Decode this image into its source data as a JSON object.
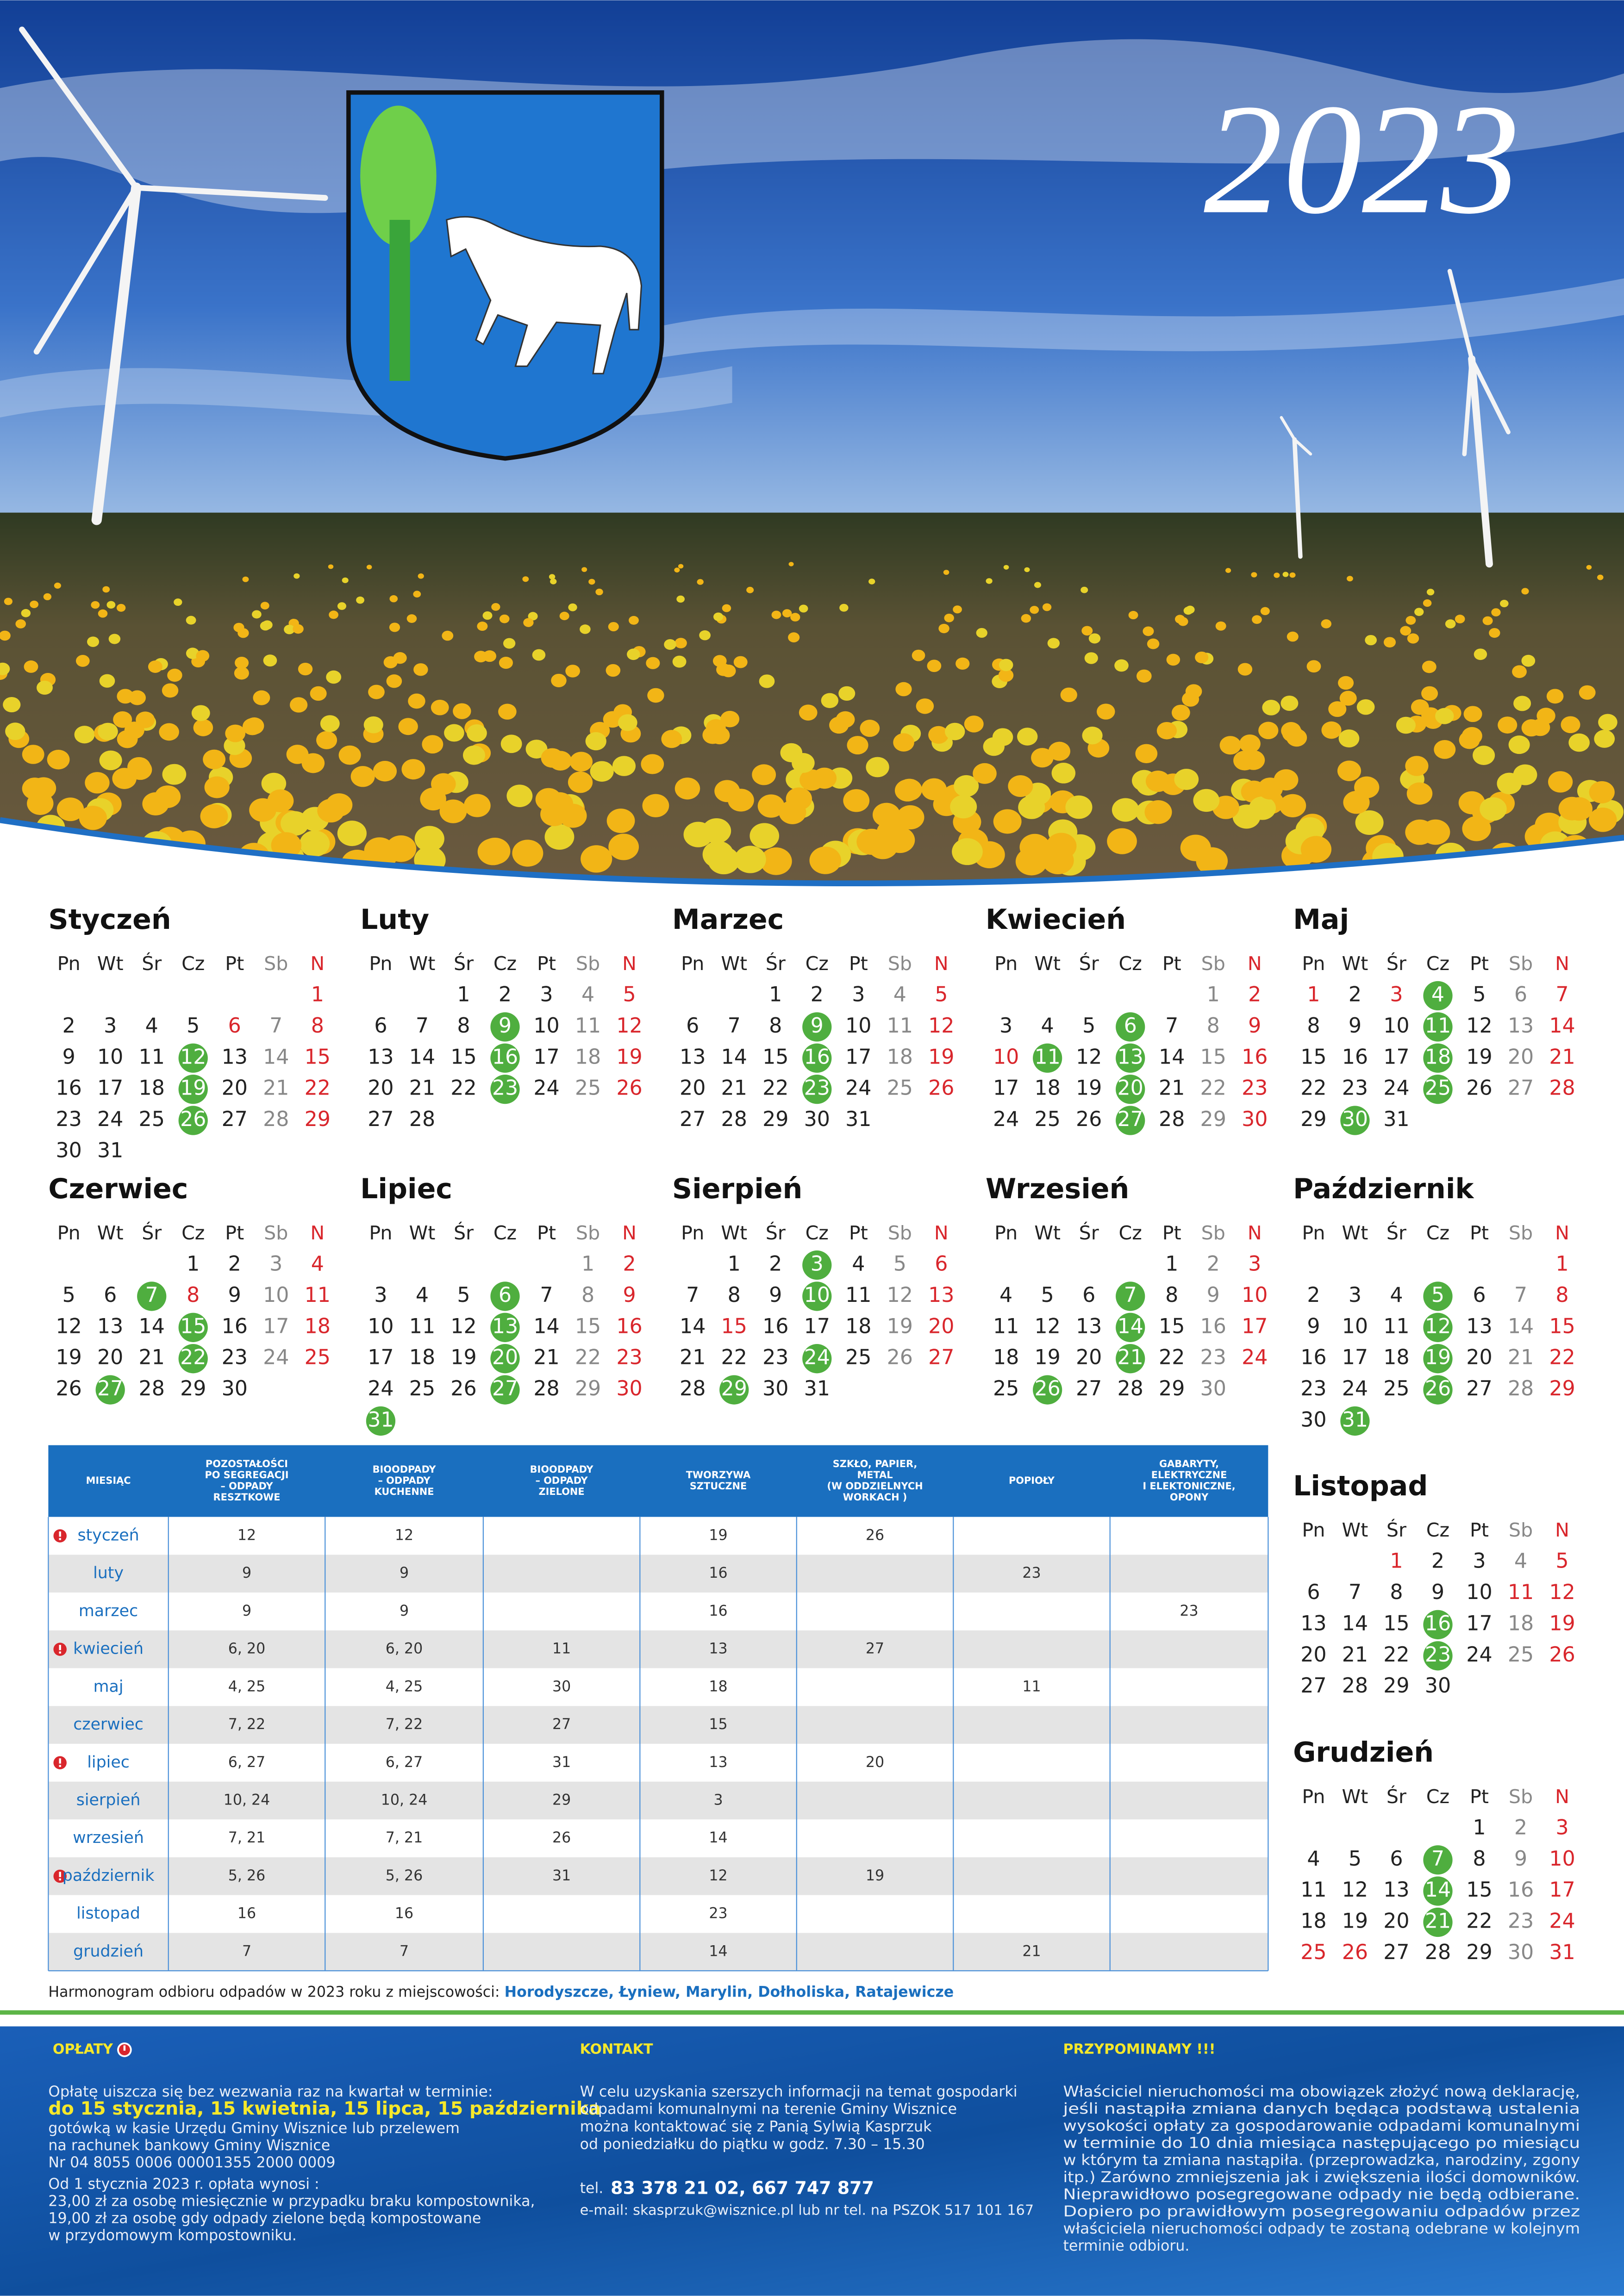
{
  "header": {
    "year": "2023"
  },
  "calendar": {
    "weekdays": [
      "Pn",
      "Wt",
      "Śr",
      "Cz",
      "Pt",
      "Sb",
      "N"
    ],
    "months": [
      {
        "name": "Styczeń",
        "weeks": [
          [
            null,
            null,
            null,
            null,
            null,
            null,
            1
          ],
          [
            2,
            3,
            4,
            5,
            6,
            7,
            8
          ],
          [
            9,
            10,
            11,
            12,
            13,
            14,
            15
          ],
          [
            16,
            17,
            18,
            19,
            20,
            21,
            22
          ],
          [
            23,
            24,
            25,
            26,
            27,
            28,
            29
          ],
          [
            30,
            31
          ]
        ],
        "marked": [
          12,
          19,
          26
        ],
        "holidays": [
          6
        ]
      },
      {
        "name": "Luty",
        "weeks": [
          [
            null,
            null,
            1,
            2,
            3,
            4,
            5
          ],
          [
            6,
            7,
            8,
            9,
            10,
            11,
            12
          ],
          [
            13,
            14,
            15,
            16,
            17,
            18,
            19
          ],
          [
            20,
            21,
            22,
            23,
            24,
            25,
            26
          ],
          [
            27,
            28
          ]
        ],
        "marked": [
          9,
          16,
          23
        ],
        "holidays": []
      },
      {
        "name": "Marzec",
        "weeks": [
          [
            null,
            null,
            1,
            2,
            3,
            4,
            5
          ],
          [
            6,
            7,
            8,
            9,
            10,
            11,
            12
          ],
          [
            13,
            14,
            15,
            16,
            17,
            18,
            19
          ],
          [
            20,
            21,
            22,
            23,
            24,
            25,
            26
          ],
          [
            27,
            28,
            29,
            30,
            31
          ]
        ],
        "marked": [
          9,
          16,
          23
        ],
        "holidays": []
      },
      {
        "name": "Kwiecień",
        "weeks": [
          [
            null,
            null,
            null,
            null,
            null,
            1,
            2
          ],
          [
            3,
            4,
            5,
            6,
            7,
            8,
            9
          ],
          [
            10,
            11,
            12,
            13,
            14,
            15,
            16
          ],
          [
            17,
            18,
            19,
            20,
            21,
            22,
            23
          ],
          [
            24,
            25,
            26,
            27,
            28,
            29,
            30
          ]
        ],
        "marked": [
          6,
          11,
          13,
          20,
          27
        ],
        "holidays": [
          10
        ]
      },
      {
        "name": "Maj",
        "weeks": [
          [
            1,
            2,
            3,
            4,
            5,
            6,
            7
          ],
          [
            8,
            9,
            10,
            11,
            12,
            13,
            14
          ],
          [
            15,
            16,
            17,
            18,
            19,
            20,
            21
          ],
          [
            22,
            23,
            24,
            25,
            26,
            27,
            28
          ],
          [
            29,
            30,
            31
          ]
        ],
        "marked": [
          4,
          11,
          18,
          25,
          30
        ],
        "holidays": [
          1,
          3
        ]
      },
      {
        "name": "Czerwiec",
        "weeks": [
          [
            null,
            null,
            null,
            1,
            2,
            3,
            4
          ],
          [
            5,
            6,
            7,
            8,
            9,
            10,
            11
          ],
          [
            12,
            13,
            14,
            15,
            16,
            17,
            18
          ],
          [
            19,
            20,
            21,
            22,
            23,
            24,
            25
          ],
          [
            26,
            27,
            28,
            29,
            30
          ]
        ],
        "marked": [
          7,
          15,
          22,
          27
        ],
        "holidays": [
          8
        ]
      },
      {
        "name": "Lipiec",
        "weeks": [
          [
            null,
            null,
            null,
            null,
            null,
            1,
            2
          ],
          [
            3,
            4,
            5,
            6,
            7,
            8,
            9
          ],
          [
            10,
            11,
            12,
            13,
            14,
            15,
            16
          ],
          [
            17,
            18,
            19,
            20,
            21,
            22,
            23
          ],
          [
            24,
            25,
            26,
            27,
            28,
            29,
            30
          ],
          [
            31
          ]
        ],
        "marked": [
          6,
          13,
          20,
          27,
          31
        ],
        "holidays": []
      },
      {
        "name": "Sierpień",
        "weeks": [
          [
            null,
            1,
            2,
            3,
            4,
            5,
            6
          ],
          [
            7,
            8,
            9,
            10,
            11,
            12,
            13
          ],
          [
            14,
            15,
            16,
            17,
            18,
            19,
            20
          ],
          [
            21,
            22,
            23,
            24,
            25,
            26,
            27
          ],
          [
            28,
            29,
            30,
            31
          ]
        ],
        "marked": [
          3,
          10,
          24,
          29
        ],
        "holidays": [
          15
        ]
      },
      {
        "name": "Wrzesień",
        "weeks": [
          [
            null,
            null,
            null,
            null,
            1,
            2,
            3
          ],
          [
            4,
            5,
            6,
            7,
            8,
            9,
            10
          ],
          [
            11,
            12,
            13,
            14,
            15,
            16,
            17
          ],
          [
            18,
            19,
            20,
            21,
            22,
            23,
            24
          ],
          [
            25,
            26,
            27,
            28,
            29,
            30
          ]
        ],
        "marked": [
          7,
          14,
          21,
          26
        ],
        "holidays": []
      },
      {
        "name": "Październik",
        "weeks": [
          [
            null,
            null,
            null,
            null,
            null,
            null,
            1
          ],
          [
            2,
            3,
            4,
            5,
            6,
            7,
            8
          ],
          [
            9,
            10,
            11,
            12,
            13,
            14,
            15
          ],
          [
            16,
            17,
            18,
            19,
            20,
            21,
            22
          ],
          [
            23,
            24,
            25,
            26,
            27,
            28,
            29
          ],
          [
            30,
            31
          ]
        ],
        "marked": [
          5,
          12,
          19,
          26,
          31
        ],
        "holidays": []
      },
      {
        "name": "Listopad",
        "weeks": [
          [
            null,
            null,
            1,
            2,
            3,
            4,
            5
          ],
          [
            6,
            7,
            8,
            9,
            10,
            11,
            12
          ],
          [
            13,
            14,
            15,
            16,
            17,
            18,
            19
          ],
          [
            20,
            21,
            22,
            23,
            24,
            25,
            26
          ],
          [
            27,
            28,
            29,
            30
          ]
        ],
        "marked": [
          16,
          23
        ],
        "holidays": [
          1,
          11
        ]
      },
      {
        "name": "Grudzień",
        "weeks": [
          [
            null,
            null,
            null,
            null,
            1,
            2,
            3
          ],
          [
            4,
            5,
            6,
            7,
            8,
            9,
            10
          ],
          [
            11,
            12,
            13,
            14,
            15,
            16,
            17
          ],
          [
            18,
            19,
            20,
            21,
            22,
            23,
            24
          ],
          [
            25,
            26,
            27,
            28,
            29,
            30,
            31
          ]
        ],
        "marked": [
          7,
          14,
          21
        ],
        "holidays": [
          25,
          26
        ]
      }
    ]
  },
  "schedule": {
    "columns": [
      [
        "MIESIĄC"
      ],
      [
        "POZOSTAŁOŚCI",
        "PO SEGREGACJI",
        "– ODPADY",
        "RESZTKOWE"
      ],
      [
        "BIOODPADY",
        "– ODPADY",
        "KUCHENNE"
      ],
      [
        "BIOODPADY",
        "– ODPADY",
        "ZIELONE"
      ],
      [
        "TWORZYWA",
        "SZTUCZNE"
      ],
      [
        "SZKŁO, PAPIER,",
        "METAL",
        "(W ODDZIELNYCH",
        "WORKACH )"
      ],
      [
        "POPIOŁY"
      ],
      [
        "GABARYTY,",
        "ELEKTRYCZNE",
        "I ELEKTONICZNE,",
        "OPONY"
      ]
    ],
    "rows": [
      {
        "month": "styczeń",
        "alert": true,
        "cells": [
          "12",
          "12",
          null,
          "19",
          "26",
          null,
          null
        ]
      },
      {
        "month": "luty",
        "alert": false,
        "cells": [
          "9",
          "9",
          null,
          "16",
          null,
          "23",
          null
        ]
      },
      {
        "month": "marzec",
        "alert": false,
        "cells": [
          "9",
          "9",
          null,
          "16",
          null,
          null,
          "23"
        ]
      },
      {
        "month": "kwiecień",
        "alert": true,
        "cells": [
          "6, 20",
          "6, 20",
          "11",
          "13",
          "27",
          null,
          null
        ]
      },
      {
        "month": "maj",
        "alert": false,
        "cells": [
          "4, 25",
          "4, 25",
          "30",
          "18",
          null,
          "11",
          null
        ]
      },
      {
        "month": "czerwiec",
        "alert": false,
        "cells": [
          "7, 22",
          "7, 22",
          "27",
          "15",
          null,
          null,
          null
        ]
      },
      {
        "month": "lipiec",
        "alert": true,
        "cells": [
          "6, 27",
          "6, 27",
          "31",
          "13",
          "20",
          null,
          null
        ]
      },
      {
        "month": "sierpień",
        "alert": false,
        "cells": [
          "10, 24",
          "10, 24",
          "29",
          "3",
          null,
          null,
          null
        ]
      },
      {
        "month": "wrzesień",
        "alert": false,
        "cells": [
          "7, 21",
          "7, 21",
          "26",
          "14",
          null,
          null,
          null
        ]
      },
      {
        "month": "październik",
        "alert": true,
        "cells": [
          "5, 26",
          "5, 26",
          "31",
          "12",
          "19",
          null,
          null
        ]
      },
      {
        "month": "listopad",
        "alert": false,
        "cells": [
          "16",
          "16",
          null,
          "23",
          null,
          null,
          null
        ]
      },
      {
        "month": "grudzień",
        "alert": false,
        "cells": [
          "7",
          "7",
          null,
          "14",
          null,
          "21",
          null
        ]
      }
    ]
  },
  "note": {
    "text": "Harmonogram odbioru odpadów w 2023 roku z miejscowości: ",
    "places": "Horodyszcze, Łyniew, Marylin, Dołholiska, Ratajewicze"
  },
  "footer": {
    "fees": {
      "title": "OPŁATY",
      "intro": "Opłatę uiszcza się bez wezwania raz na kwartał w terminie:",
      "dates": "do 15 stycznia, 15 kwietnia, 15 lipca, 15 października",
      "lines": [
        "gotówką w kasie Urzędu Gminy Wisznice lub przelewem",
        "na rachunek bankowy Gminy Wisznice",
        "Nr 04 8055 0006 00001355 2000 0009",
        "Od 1 stycznia 2023 r. opłata wynosi :",
        "23,00 zł za osobę miesięcznie w przypadku braku kompostownika,",
        "19,00 zł za osobę gdy odpady zielone będą kompostowane",
        "w przydomowym kompostowniku."
      ]
    },
    "contact": {
      "title": "KONTAKT",
      "lines": [
        "W celu uzyskania szerszych informacji na temat gospodarki",
        "odpadami komunalnymi na terenie Gminy Wisznice",
        "można kontaktować się z Panią Sylwią Kasprzuk",
        "od poniedziałku do piątku w godz. 7.30 – 15.30"
      ],
      "phone_label": "tel.",
      "phone": "83 378 21 02, 667 747 877",
      "email": "e-mail: skasprzuk@wisznice.pl lub nr tel. na PSZOK 517 101 167"
    },
    "reminder": {
      "title": "PRZYPOMINAMY !!!",
      "lines": [
        "Właściciel nieruchomości ma obowiązek złożyć nową deklarację,",
        "jeśli nastąpiła zmiana danych będąca podstawą ustalenia",
        "wysokości opłaty za gospodarowanie odpadami komunalnymi",
        "w terminie do 10 dnia miesiąca następującego po miesiącu",
        "w którym ta zmiana nastąpiła. (przeprowadzka, narodziny, zgony",
        "itp.) Zarówno zmniejszenia jak i zwiększenia ilości domowników.",
        "Nieprawidłowo posegregowane odpady nie będą odbierane.",
        "Dopiero po prawidłowym posegregowaniu odpadów przez",
        "właściciela nieruchomości odpady te zostaną odebrane w kolejnym",
        "terminie odbioru."
      ]
    }
  }
}
